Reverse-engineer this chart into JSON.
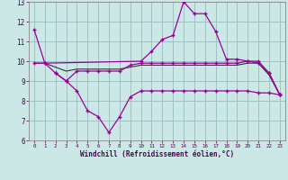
{
  "xlabel": "Windchill (Refroidissement éolien,°C)",
  "bg_color": "#cce8e6",
  "outer_bg": "#cce8e6",
  "line_color": "#990099",
  "grid_color": "#99bbbb",
  "dark_line_color": "#333333",
  "x_values": [
    0,
    1,
    2,
    3,
    4,
    5,
    6,
    7,
    8,
    9,
    10,
    11,
    12,
    13,
    14,
    15,
    16,
    17,
    18,
    19,
    20,
    21,
    22,
    23
  ],
  "main_x": [
    0,
    1,
    10,
    11,
    12,
    13,
    14,
    15,
    16,
    17,
    18,
    19,
    20,
    21,
    22,
    23
  ],
  "main_y": [
    11.6,
    9.9,
    10.0,
    10.5,
    11.1,
    11.3,
    13.0,
    12.4,
    12.4,
    11.5,
    10.1,
    10.1,
    10.0,
    9.9,
    9.4,
    8.3
  ],
  "upper_x": [
    0,
    1,
    2,
    3,
    4,
    5,
    6,
    7,
    8,
    9,
    10,
    11,
    12,
    13,
    14,
    15,
    16,
    17,
    18,
    19,
    20,
    21,
    22,
    23
  ],
  "upper_y": [
    9.9,
    9.9,
    9.4,
    9.0,
    9.5,
    9.5,
    9.5,
    9.5,
    9.5,
    9.8,
    9.9,
    9.9,
    9.9,
    9.9,
    9.9,
    9.9,
    9.9,
    9.9,
    9.9,
    9.9,
    10.0,
    10.0,
    9.4,
    8.3
  ],
  "lower_x": [
    2,
    3,
    4,
    5,
    6,
    7,
    8,
    9,
    10,
    11,
    12,
    13,
    14,
    15,
    16,
    17,
    18,
    19,
    20,
    21,
    22,
    23
  ],
  "lower_y": [
    9.4,
    9.0,
    8.5,
    7.5,
    7.2,
    6.4,
    7.2,
    8.2,
    8.5,
    8.5,
    8.5,
    8.5,
    8.5,
    8.5,
    8.5,
    8.5,
    8.5,
    8.5,
    8.5,
    8.4,
    8.4,
    8.3
  ],
  "dark_x": [
    0,
    1,
    2,
    3,
    4,
    5,
    6,
    7,
    8,
    9,
    10,
    11,
    12,
    13,
    14,
    15,
    16,
    17,
    18,
    19,
    20,
    21,
    22,
    23
  ],
  "dark_y": [
    9.9,
    9.9,
    9.7,
    9.5,
    9.6,
    9.6,
    9.6,
    9.6,
    9.6,
    9.7,
    9.8,
    9.8,
    9.8,
    9.8,
    9.8,
    9.8,
    9.8,
    9.8,
    9.8,
    9.8,
    9.9,
    9.9,
    9.3,
    8.3
  ],
  "ylim": [
    6,
    13
  ],
  "xlim_min": -0.5,
  "xlim_max": 23.5
}
